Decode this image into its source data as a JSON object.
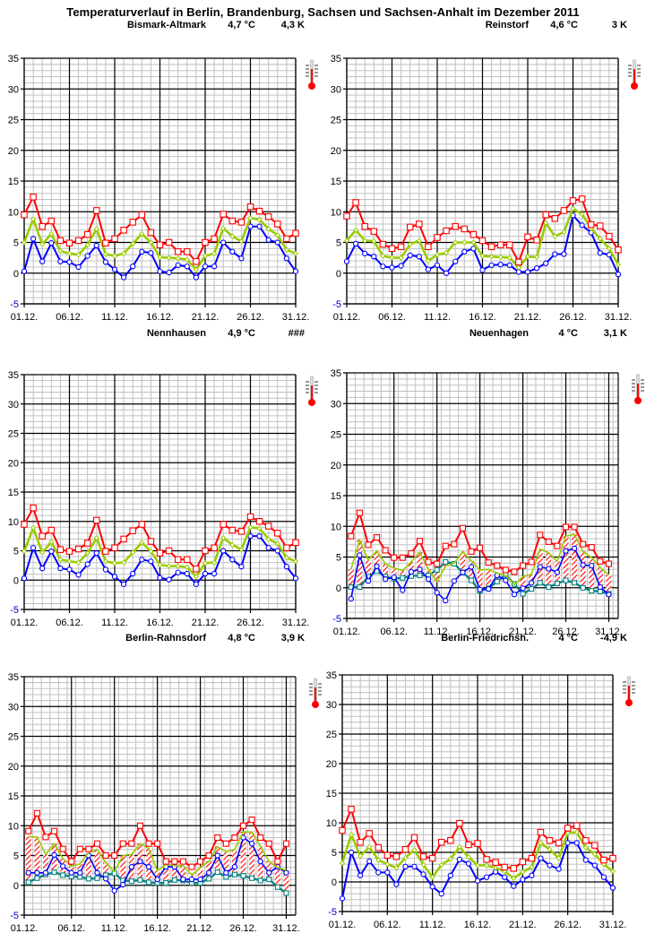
{
  "title": "Temperaturverlauf in Berlin, Brandenburg, Sachsen und Sachsen-Anhalt im Dezember 2011",
  "colors": {
    "max": "#ff0000",
    "mean": "#99cc00",
    "min": "#0000ff",
    "ground": "#008080",
    "grid_minor": "#c0c0c0",
    "grid_major": "#000000"
  },
  "icons": {
    "thermometer": "thermometer-icon"
  },
  "chart_data": [
    {
      "type": "line",
      "station": "Bismark-Altmark",
      "mean_temp": "4,7 °C",
      "deviation": "4,3 K",
      "style": "line",
      "x": [
        "01.12.",
        "02.12.",
        "03.12.",
        "04.12.",
        "05.12.",
        "06.12.",
        "07.12.",
        "08.12.",
        "09.12.",
        "10.12.",
        "11.12.",
        "12.12.",
        "13.12.",
        "14.12.",
        "15.12.",
        "16.12.",
        "17.12.",
        "18.12.",
        "19.12.",
        "20.12.",
        "21.12.",
        "22.12.",
        "23.12.",
        "24.12.",
        "25.12.",
        "26.12.",
        "27.12.",
        "28.12.",
        "29.12.",
        "30.12.",
        "31.12."
      ],
      "xticks": [
        "01.12.",
        "06.12.",
        "11.12.",
        "16.12.",
        "21.12.",
        "26.12.",
        "31.12."
      ],
      "yticks": [
        35,
        30,
        25,
        20,
        15,
        10,
        5,
        0,
        -5
      ],
      "ylim": [
        -5,
        35
      ],
      "grid": true,
      "series": [
        {
          "name": "max",
          "values": [
            9.5,
            12.4,
            7.6,
            8.5,
            5.3,
            4.9,
            5.3,
            6.3,
            10.2,
            4.9,
            5.6,
            7.0,
            8.3,
            9.5,
            6.6,
            4.6,
            5.0,
            3.5,
            3.5,
            1.9,
            5.0,
            5.6,
            9.6,
            8.5,
            8.3,
            10.8,
            10.1,
            9.2,
            8.0,
            5.6,
            6.5
          ]
        },
        {
          "name": "mean",
          "values": [
            5.0,
            8.8,
            4.7,
            6.4,
            3.6,
            3.2,
            3.0,
            4.6,
            7.2,
            3.1,
            2.8,
            3.2,
            4.8,
            6.4,
            5.0,
            2.6,
            2.5,
            2.4,
            2.2,
            0.6,
            2.8,
            3.2,
            7.3,
            6.0,
            5.2,
            9.0,
            8.7,
            7.2,
            6.2,
            3.8,
            3.2
          ]
        },
        {
          "name": "min",
          "values": [
            0.3,
            5.6,
            1.9,
            4.9,
            1.9,
            1.8,
            1.0,
            2.8,
            4.5,
            1.8,
            0.6,
            -0.7,
            1.1,
            3.5,
            3.3,
            0.3,
            0.1,
            1.3,
            1.1,
            -0.7,
            1.1,
            1.1,
            5.0,
            3.5,
            2.4,
            7.6,
            7.6,
            5.4,
            5.0,
            2.4,
            0.3
          ]
        }
      ]
    },
    {
      "type": "line",
      "station": "Reinstorf",
      "mean_temp": "4,6 °C",
      "deviation": "3 K",
      "style": "line",
      "x": [
        "01.12.",
        "02.12.",
        "03.12.",
        "04.12.",
        "05.12.",
        "06.12.",
        "07.12.",
        "08.12.",
        "09.12.",
        "10.12.",
        "11.12.",
        "12.12.",
        "13.12.",
        "14.12.",
        "15.12.",
        "16.12.",
        "17.12.",
        "18.12.",
        "19.12.",
        "20.12.",
        "21.12.",
        "22.12.",
        "23.12.",
        "24.12.",
        "25.12.",
        "26.12.",
        "27.12.",
        "28.12.",
        "29.12.",
        "30.12.",
        "31.12."
      ],
      "xticks": [
        "01.12.",
        "06.12.",
        "11.12.",
        "16.12.",
        "21.12.",
        "26.12.",
        "31.12."
      ],
      "yticks": [
        35,
        30,
        25,
        20,
        15,
        10,
        5,
        0,
        -5
      ],
      "ylim": [
        -5,
        35
      ],
      "grid": true,
      "series": [
        {
          "name": "max",
          "values": [
            9.3,
            11.5,
            7.6,
            6.8,
            4.7,
            4.0,
            4.3,
            7.5,
            8.0,
            4.3,
            5.8,
            6.9,
            7.6,
            7.2,
            6.3,
            5.3,
            4.3,
            4.6,
            4.6,
            1.8,
            5.9,
            5.4,
            9.5,
            8.9,
            10.2,
            11.8,
            12.1,
            7.9,
            7.7,
            6.0,
            3.8
          ]
        },
        {
          "name": "mean",
          "values": [
            5.3,
            7.0,
            5.3,
            5.2,
            2.8,
            2.5,
            2.5,
            4.7,
            5.3,
            2.0,
            3.0,
            3.3,
            5.0,
            5.0,
            5.0,
            2.8,
            2.7,
            2.6,
            2.5,
            0.9,
            2.7,
            2.6,
            8.2,
            6.0,
            6.7,
            10.5,
            9.6,
            7.3,
            5.6,
            4.0,
            1.4
          ]
        },
        {
          "name": "min",
          "values": [
            1.9,
            4.8,
            3.2,
            2.7,
            1.1,
            0.9,
            1.2,
            2.9,
            2.7,
            0.6,
            1.3,
            0.0,
            1.9,
            3.5,
            4.0,
            0.5,
            1.3,
            1.4,
            1.3,
            0.2,
            0.2,
            0.8,
            1.6,
            3.1,
            3.1,
            9.4,
            7.8,
            6.6,
            3.3,
            3.0,
            -0.2
          ]
        }
      ]
    },
    {
      "type": "line",
      "station": "Nennhausen",
      "mean_temp": "4,9 °C",
      "deviation": "###",
      "style": "line",
      "x": [
        "01.12.",
        "02.12.",
        "03.12.",
        "04.12.",
        "05.12.",
        "06.12.",
        "07.12.",
        "08.12.",
        "09.12.",
        "10.12.",
        "11.12.",
        "12.12.",
        "13.12.",
        "14.12.",
        "15.12.",
        "16.12.",
        "17.12.",
        "18.12.",
        "19.12.",
        "20.12.",
        "21.12.",
        "22.12.",
        "23.12.",
        "24.12.",
        "25.12.",
        "26.12.",
        "27.12.",
        "28.12.",
        "29.12.",
        "30.12.",
        "31.12."
      ],
      "xticks": [
        "01.12.",
        "06.12.",
        "11.12.",
        "16.12.",
        "21.12.",
        "26.12.",
        "31.12."
      ],
      "yticks": [
        35,
        30,
        25,
        20,
        15,
        10,
        5,
        0,
        -5
      ],
      "ylim": [
        -5,
        35
      ],
      "grid": true,
      "series": [
        {
          "name": "max",
          "values": [
            9.5,
            12.3,
            7.5,
            8.5,
            5.2,
            4.9,
            5.3,
            6.3,
            10.2,
            4.9,
            5.5,
            7.0,
            8.4,
            9.5,
            6.6,
            4.6,
            5.0,
            3.5,
            3.5,
            1.9,
            5.0,
            5.5,
            9.5,
            8.5,
            8.3,
            10.8,
            10.0,
            9.2,
            8.0,
            5.5,
            6.4
          ]
        },
        {
          "name": "mean",
          "values": [
            4.9,
            8.9,
            4.7,
            6.5,
            3.5,
            3.2,
            3.0,
            4.6,
            7.2,
            3.2,
            2.9,
            3.0,
            4.7,
            6.4,
            4.9,
            2.6,
            2.4,
            2.4,
            2.2,
            0.6,
            2.9,
            3.0,
            7.2,
            6.0,
            5.2,
            9.0,
            8.8,
            7.0,
            6.2,
            3.8,
            3.2
          ]
        },
        {
          "name": "min",
          "values": [
            0.3,
            5.5,
            2.0,
            4.9,
            2.0,
            1.8,
            0.9,
            2.7,
            4.6,
            1.8,
            0.6,
            -0.7,
            1.1,
            3.5,
            3.2,
            0.4,
            0.1,
            1.3,
            1.1,
            -0.7,
            1.1,
            1.1,
            5.0,
            3.5,
            2.3,
            7.5,
            7.5,
            5.5,
            5.0,
            2.3,
            0.3
          ]
        }
      ]
    },
    {
      "type": "bar",
      "station": "Neuenhagen",
      "mean_temp": "4 °C",
      "deviation": "3,1 K",
      "style": "bar",
      "x": [
        "01.12.",
        "02.12.",
        "03.12.",
        "04.12.",
        "05.12.",
        "06.12.",
        "07.12.",
        "08.12.",
        "09.12.",
        "10.12.",
        "11.12.",
        "12.12.",
        "13.12.",
        "14.12.",
        "15.12.",
        "16.12.",
        "17.12.",
        "18.12.",
        "19.12.",
        "20.12.",
        "21.12.",
        "22.12.",
        "23.12.",
        "24.12.",
        "25.12.",
        "26.12.",
        "27.12.",
        "28.12.",
        "29.12.",
        "30.12.",
        "31.12."
      ],
      "xticks": [
        "01.12.",
        "06.12.",
        "11.12.",
        "16.12.",
        "21.12.",
        "26.12.",
        "31.12."
      ],
      "yticks": [
        35,
        30,
        25,
        20,
        15,
        10,
        5,
        0,
        -5
      ],
      "ylim": [
        -5,
        35
      ],
      "grid": true,
      "series": [
        {
          "name": "max",
          "values": [
            8.4,
            12.2,
            7.0,
            8.2,
            6.1,
            4.9,
            4.9,
            5.6,
            7.6,
            4.2,
            3.9,
            6.8,
            7.1,
            9.7,
            5.9,
            6.5,
            4.1,
            3.6,
            2.9,
            2.6,
            3.6,
            4.2,
            8.6,
            7.5,
            6.8,
            9.9,
            9.9,
            7.1,
            6.6,
            4.3,
            3.9
          ]
        },
        {
          "name": "mean",
          "values": [
            3.0,
            7.8,
            4.5,
            6.0,
            3.9,
            3.2,
            2.8,
            4.2,
            5.8,
            3.0,
            1.0,
            3.5,
            4.0,
            5.9,
            4.4,
            2.9,
            3.0,
            2.4,
            2.0,
            0.5,
            1.8,
            2.2,
            6.3,
            5.7,
            4.3,
            8.4,
            8.7,
            5.9,
            4.9,
            3.3,
            2.1
          ]
        },
        {
          "name": "min",
          "values": [
            -1.8,
            5.3,
            1.1,
            3.5,
            1.4,
            1.7,
            -0.4,
            2.6,
            3.0,
            1.4,
            -0.8,
            -2.1,
            1.1,
            2.5,
            3.4,
            -0.3,
            -0.2,
            2.0,
            1.2,
            -1.1,
            -0.1,
            0.8,
            3.4,
            3.1,
            2.5,
            6.0,
            6.4,
            3.7,
            3.6,
            0.1,
            -1.1
          ]
        },
        {
          "name": "ground",
          "values": [
            0.1,
            0.1,
            1.8,
            2.7,
            1.8,
            1.5,
            1.6,
            1.9,
            2.0,
            2.0,
            2.9,
            4.2,
            3.9,
            2.5,
            1.2,
            -0.5,
            -0.1,
            1.0,
            2.1,
            0.6,
            -1.0,
            -0.2,
            0.8,
            0.1,
            0.7,
            1.2,
            0.8,
            0.0,
            -0.5,
            -0.6,
            -1.0
          ]
        }
      ]
    },
    {
      "type": "bar",
      "station": "Berlin-Rahnsdorf",
      "mean_temp": "4,8 °C",
      "deviation": "3,9 K",
      "style": "bar",
      "x": [
        "01.12.",
        "02.12.",
        "03.12.",
        "04.12.",
        "05.12.",
        "06.12.",
        "07.12.",
        "08.12.",
        "09.12.",
        "10.12.",
        "11.12.",
        "12.12.",
        "13.12.",
        "14.12.",
        "15.12.",
        "16.12.",
        "17.12.",
        "18.12.",
        "19.12.",
        "20.12.",
        "21.12.",
        "22.12.",
        "23.12.",
        "24.12.",
        "25.12.",
        "26.12.",
        "27.12.",
        "28.12.",
        "29.12.",
        "30.12.",
        "31.12."
      ],
      "xticks": [
        "01.12.",
        "06.12.",
        "11.12.",
        "16.12.",
        "21.12.",
        "26.12.",
        "31.12."
      ],
      "yticks": [
        35,
        30,
        25,
        20,
        15,
        10,
        5,
        0,
        -5
      ],
      "ylim": [
        -5,
        35
      ],
      "grid": true,
      "series": [
        {
          "name": "max",
          "values": [
            9.1,
            12.1,
            8.1,
            9.1,
            6.1,
            4.0,
            6.1,
            6.1,
            7.0,
            5.0,
            5.0,
            7.0,
            7.0,
            10.0,
            7.0,
            7.0,
            4.0,
            4.0,
            4.0,
            3.1,
            4.0,
            5.0,
            8.0,
            7.0,
            8.0,
            10.0,
            11.0,
            8.0,
            7.0,
            4.0,
            7.0
          ]
        },
        {
          "name": "mean",
          "values": [
            8.2,
            8.1,
            5.2,
            7.0,
            4.5,
            3.2,
            3.6,
            5.5,
            6.0,
            3.8,
            2.3,
            5.0,
            5.2,
            7.0,
            6.2,
            2.4,
            3.5,
            3.3,
            3.3,
            1.7,
            3.0,
            4.0,
            6.5,
            5.6,
            6.0,
            9.0,
            8.9,
            6.5,
            4.0,
            3.0,
            2.5
          ]
        },
        {
          "name": "min",
          "values": [
            2.1,
            2.1,
            2.1,
            5.1,
            3.2,
            2.1,
            2.1,
            5.0,
            2.1,
            1.1,
            -0.9,
            0.1,
            3.1,
            4.0,
            3.1,
            1.0,
            3.1,
            3.1,
            1.0,
            1.0,
            1.0,
            2.1,
            5.0,
            2.1,
            3.1,
            8.0,
            7.0,
            4.0,
            2.1,
            3.1,
            2.1
          ]
        },
        {
          "name": "ground",
          "values": [
            0.5,
            1.2,
            1.8,
            2.2,
            1.7,
            1.5,
            1.4,
            1.1,
            1.2,
            1.7,
            2.0,
            0.8,
            0.7,
            0.9,
            0.5,
            0.4,
            0.4,
            0.9,
            0.8,
            0.4,
            0.4,
            1.1,
            2.2,
            1.4,
            1.8,
            1.6,
            1.2,
            0.8,
            1.0,
            -0.3,
            -1.3
          ]
        }
      ]
    },
    {
      "type": "line",
      "station": "Berlin-Friedrichsh.",
      "mean_temp": "4 °C",
      "deviation": "-4,9 K",
      "style": "line",
      "x": [
        "01.12.",
        "02.12.",
        "03.12.",
        "04.12.",
        "05.12.",
        "06.12.",
        "07.12.",
        "08.12.",
        "09.12.",
        "10.12.",
        "11.12.",
        "12.12.",
        "13.12.",
        "14.12.",
        "15.12.",
        "16.12.",
        "17.12.",
        "18.12.",
        "19.12.",
        "20.12.",
        "21.12.",
        "22.12.",
        "23.12.",
        "24.12.",
        "25.12.",
        "26.12.",
        "27.12.",
        "28.12.",
        "29.12.",
        "30.12.",
        "31.12."
      ],
      "xticks": [
        "01.12.",
        "06.12.",
        "11.12.",
        "16.12.",
        "21.12.",
        "26.12.",
        "31.12."
      ],
      "yticks": [
        35,
        30,
        25,
        20,
        15,
        10,
        5,
        0,
        -5
      ],
      "ylim": [
        -5,
        35
      ],
      "grid": true,
      "series": [
        {
          "name": "max",
          "values": [
            8.7,
            12.3,
            6.7,
            8.2,
            5.8,
            4.5,
            4.3,
            5.5,
            7.5,
            4.3,
            4.0,
            6.7,
            7.0,
            9.9,
            6.3,
            6.5,
            3.8,
            3.3,
            2.5,
            2.3,
            3.4,
            4.0,
            8.4,
            7.0,
            6.6,
            9.1,
            9.5,
            7.0,
            6.2,
            3.7,
            4.0
          ]
        },
        {
          "name": "mean",
          "values": [
            3.2,
            8.0,
            4.4,
            5.9,
            3.7,
            3.0,
            2.4,
            4.1,
            5.4,
            2.9,
            0.8,
            2.9,
            3.9,
            5.9,
            4.2,
            2.8,
            2.8,
            2.4,
            1.8,
            0.6,
            1.7,
            2.5,
            6.6,
            5.5,
            4.0,
            8.3,
            8.4,
            5.8,
            4.7,
            3.0,
            1.8
          ]
        },
        {
          "name": "min",
          "values": [
            -2.8,
            5.0,
            1.1,
            3.5,
            1.6,
            1.6,
            -0.4,
            2.6,
            2.6,
            1.3,
            -0.8,
            -2.0,
            1.1,
            3.8,
            3.1,
            0.2,
            0.8,
            1.7,
            0.8,
            -0.7,
            0.4,
            1.1,
            4.0,
            2.8,
            2.2,
            6.6,
            6.6,
            3.7,
            2.8,
            0.8,
            -1.0
          ]
        }
      ]
    }
  ]
}
